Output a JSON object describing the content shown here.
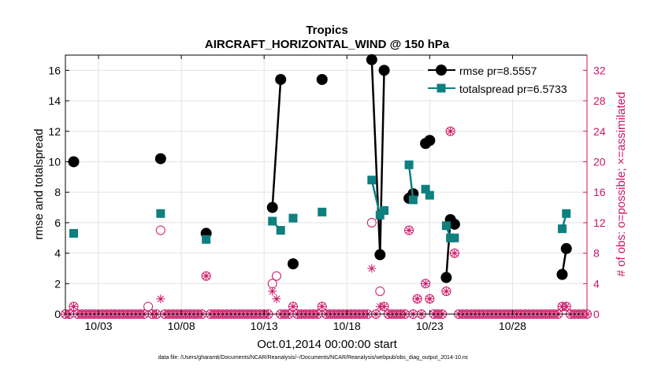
{
  "chart_data": {
    "type": "line",
    "title": "Tropics",
    "subtitle": "AIRCRAFT_HORIZONTAL_WIND @ 150 hPa",
    "xlabel": "Oct.01,2014 00:00:00 start",
    "ylabel": "rmse and totalspread",
    "y2label": "# of obs: o=possible; ×=assimilated",
    "xlim": [
      1,
      32.5
    ],
    "ylim": [
      0,
      17
    ],
    "y2lim": [
      0,
      34
    ],
    "x_ticks": [
      3,
      8,
      13,
      18,
      23,
      28
    ],
    "x_tick_labels": [
      "10/03",
      "10/08",
      "10/13",
      "10/18",
      "10/23",
      "10/28"
    ],
    "y_ticks": [
      0,
      2,
      4,
      6,
      8,
      10,
      12,
      14,
      16
    ],
    "y2_ticks": [
      0,
      4,
      8,
      12,
      16,
      20,
      24,
      28,
      32
    ],
    "grid": true,
    "legend_position": "top-right",
    "colors": {
      "rmse": "#000000",
      "spread": "#0f7f80",
      "obs": "#cc1566"
    },
    "series": [
      {
        "name": "rmse pr=8.5557",
        "color": "#000000",
        "marker": "circle",
        "segments": [
          [
            [
              1.5,
              10.0
            ]
          ],
          [
            [
              6.75,
              10.2
            ]
          ],
          [
            [
              9.5,
              5.3
            ]
          ],
          [
            [
              13.5,
              7.0
            ],
            [
              14.0,
              15.4
            ]
          ],
          [
            [
              14.75,
              3.3
            ]
          ],
          [
            [
              16.5,
              15.4
            ]
          ],
          [
            [
              19.5,
              16.7
            ],
            [
              20.0,
              3.9
            ],
            [
              20.25,
              16.0
            ]
          ],
          [
            [
              21.75,
              7.6
            ],
            [
              22.0,
              7.9
            ]
          ],
          [
            [
              22.75,
              11.2
            ],
            [
              23.0,
              11.4
            ]
          ],
          [
            [
              24.0,
              2.4
            ],
            [
              24.25,
              6.2
            ],
            [
              24.5,
              5.9
            ]
          ],
          [
            [
              31.0,
              2.6
            ],
            [
              31.25,
              4.3
            ]
          ]
        ]
      },
      {
        "name": "totalspread pr=6.5733",
        "color": "#0f7f80",
        "marker": "square",
        "segments": [
          [
            [
              1.5,
              5.3
            ]
          ],
          [
            [
              6.75,
              6.6
            ]
          ],
          [
            [
              9.5,
              4.9
            ]
          ],
          [
            [
              13.5,
              6.1
            ],
            [
              14.0,
              5.5
            ]
          ],
          [
            [
              14.75,
              6.3
            ]
          ],
          [
            [
              16.5,
              6.7
            ]
          ],
          [
            [
              19.5,
              8.8
            ],
            [
              20.0,
              6.5
            ],
            [
              20.25,
              6.8
            ]
          ],
          [
            [
              21.75,
              9.8
            ],
            [
              22.0,
              7.5
            ]
          ],
          [
            [
              22.75,
              8.2
            ],
            [
              23.0,
              7.8
            ]
          ],
          [
            [
              24.0,
              5.8
            ],
            [
              24.25,
              5.0
            ],
            [
              24.5,
              5.0
            ]
          ],
          [
            [
              31.0,
              5.6
            ],
            [
              31.25,
              6.6
            ]
          ]
        ]
      }
    ],
    "obs_possible": {
      "name": "possible",
      "marker": "o",
      "points": [
        [
          1.5,
          1
        ],
        [
          6.0,
          1
        ],
        [
          6.75,
          11
        ],
        [
          9.5,
          5
        ],
        [
          13.5,
          4
        ],
        [
          13.75,
          5
        ],
        [
          14.75,
          1
        ],
        [
          16.5,
          1
        ],
        [
          19.5,
          12
        ],
        [
          20.0,
          3
        ],
        [
          20.25,
          1
        ],
        [
          21.75,
          11
        ],
        [
          22.25,
          2
        ],
        [
          22.75,
          4
        ],
        [
          23.0,
          2
        ],
        [
          24.0,
          3
        ],
        [
          24.25,
          24
        ],
        [
          24.5,
          8
        ],
        [
          31.0,
          1
        ],
        [
          31.25,
          1
        ]
      ]
    },
    "obs_assimilated": {
      "name": "assimilated",
      "marker": "*",
      "points": [
        [
          1.5,
          1
        ],
        [
          6.75,
          2
        ],
        [
          9.5,
          5
        ],
        [
          13.5,
          3
        ],
        [
          13.75,
          2
        ],
        [
          14.75,
          1
        ],
        [
          16.5,
          1
        ],
        [
          19.5,
          6
        ],
        [
          20.0,
          1
        ],
        [
          20.25,
          1
        ],
        [
          21.75,
          11
        ],
        [
          22.25,
          2
        ],
        [
          22.75,
          4
        ],
        [
          23.0,
          2
        ],
        [
          24.0,
          3
        ],
        [
          24.25,
          24
        ],
        [
          24.5,
          8
        ],
        [
          31.0,
          1
        ],
        [
          31.25,
          1
        ]
      ]
    },
    "zero_obs_x_start": 1.0,
    "zero_obs_x_end": 32.5,
    "zero_obs_step": 0.25
  },
  "footer": "data file: /Users/gharamti/Documents/NCAR/Reanalysis/~/Documents/NCAR/Reanalysis/webpub/obs_diag_output_2014-10.nc"
}
